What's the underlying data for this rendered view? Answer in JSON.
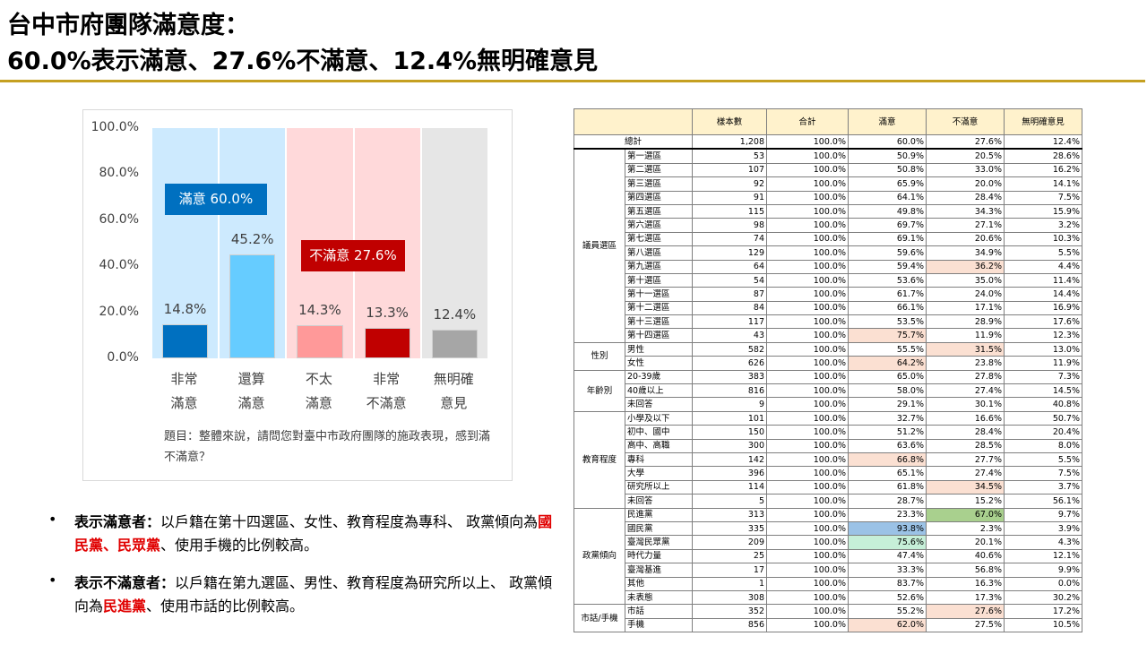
{
  "header": {
    "title_line1": "台中市府團隊滿意度：",
    "title_line2": "60.0%表示滿意、27.6%不滿意、12.4%無明確意見"
  },
  "chart_data": {
    "type": "bar",
    "categories": [
      "非常\n滿意",
      "還算\n滿意",
      "不太\n滿意",
      "非常\n不滿意",
      "無明確\n意見"
    ],
    "values": [
      14.8,
      45.2,
      14.3,
      13.3,
      12.4
    ],
    "value_labels": [
      "14.8%",
      "45.2%",
      "14.3%",
      "13.3%",
      "12.4%"
    ],
    "colors": [
      "#0070c0",
      "#66ccff",
      "#ff9999",
      "#c00000",
      "#a6a6a6"
    ],
    "band_colors": [
      "#cdeafe",
      "#cdeafe",
      "#ffd9da",
      "#ffd9da",
      "#e6e6e6"
    ],
    "ylim": [
      0,
      100
    ],
    "yticks": [
      {
        "value": 0,
        "label": "0.0%"
      },
      {
        "value": 20,
        "label": "20.0%"
      },
      {
        "value": 40,
        "label": "40.0%"
      },
      {
        "value": 60,
        "label": "60.0%"
      },
      {
        "value": 80,
        "label": "80.0%"
      },
      {
        "value": 100,
        "label": "100.0%"
      }
    ],
    "annotations": [
      "滿意 60.0%",
      "不滿意 27.6%"
    ],
    "note": "題目：整體來說，請問您對臺中市政府團隊的施政表現，感到滿不滿意？"
  },
  "bullets": [
    {
      "segments": [
        "表示滿意者：",
        "以戶籍在第十四選區、女性、教育程度為專科、 政黨傾向為",
        "國民黨、民眾黨",
        "、使用手機的比例較高。"
      ]
    },
    {
      "segments": [
        "表示不滿意者：",
        "以戶籍在第九選區、男性、教育程度為研究所以上、 政黨傾向為",
        "民進黨",
        "、使用市話的比例較高。"
      ]
    }
  ],
  "table": {
    "columns": [
      "樣本數",
      "合計",
      "滿意",
      "不滿意",
      "無明確意見"
    ],
    "total": {
      "label": "總計",
      "cells": [
        "1,208",
        "100.0%",
        "60.0%",
        "27.6%",
        "12.4%"
      ]
    },
    "groups": [
      {
        "name": "議員選區",
        "rows": [
          {
            "cells": [
              "第一選區",
              "53",
              "100.0%",
              "50.9%",
              "20.5%",
              "28.6%"
            ]
          },
          {
            "cells": [
              "第二選區",
              "107",
              "100.0%",
              "50.8%",
              "33.0%",
              "16.2%"
            ]
          },
          {
            "cells": [
              "第三選區",
              "92",
              "100.0%",
              "65.9%",
              "20.0%",
              "14.1%"
            ]
          },
          {
            "cells": [
              "第四選區",
              "91",
              "100.0%",
              "64.1%",
              "28.4%",
              "7.5%"
            ]
          },
          {
            "cells": [
              "第五選區",
              "115",
              "100.0%",
              "49.8%",
              "34.3%",
              "15.9%"
            ]
          },
          {
            "cells": [
              "第六選區",
              "98",
              "100.0%",
              "69.7%",
              "27.1%",
              "3.2%"
            ]
          },
          {
            "cells": [
              "第七選區",
              "74",
              "100.0%",
              "69.1%",
              "20.6%",
              "10.3%"
            ]
          },
          {
            "cells": [
              "第八選區",
              "129",
              "100.0%",
              "59.6%",
              "34.9%",
              "5.5%"
            ]
          },
          {
            "cells": [
              "第九選區",
              "64",
              "100.0%",
              "59.4%",
              "36.2%",
              "4.4%"
            ],
            "highlight": {
              "col": 4,
              "color": "#fbe0d2"
            }
          },
          {
            "cells": [
              "第十選區",
              "54",
              "100.0%",
              "53.6%",
              "35.0%",
              "11.4%"
            ]
          },
          {
            "cells": [
              "第十一選區",
              "87",
              "100.0%",
              "61.7%",
              "24.0%",
              "14.4%"
            ]
          },
          {
            "cells": [
              "第十二選區",
              "84",
              "100.0%",
              "66.1%",
              "17.1%",
              "16.9%"
            ]
          },
          {
            "cells": [
              "第十三選區",
              "117",
              "100.0%",
              "53.5%",
              "28.9%",
              "17.6%"
            ]
          },
          {
            "cells": [
              "第十四選區",
              "43",
              "100.0%",
              "75.7%",
              "11.9%",
              "12.3%"
            ],
            "highlight": {
              "col": 3,
              "color": "#fbe0d2"
            }
          }
        ]
      },
      {
        "name": "性別",
        "rows": [
          {
            "cells": [
              "男性",
              "582",
              "100.0%",
              "55.5%",
              "31.5%",
              "13.0%"
            ],
            "highlight": {
              "col": 4,
              "color": "#fbe0d2"
            }
          },
          {
            "cells": [
              "女性",
              "626",
              "100.0%",
              "64.2%",
              "23.8%",
              "11.9%"
            ],
            "highlight": {
              "col": 3,
              "color": "#fbe0d2"
            }
          }
        ]
      },
      {
        "name": "年齡別",
        "rows": [
          {
            "cells": [
              "20-39歲",
              "383",
              "100.0%",
              "65.0%",
              "27.8%",
              "7.3%"
            ]
          },
          {
            "cells": [
              "40歲以上",
              "816",
              "100.0%",
              "58.0%",
              "27.4%",
              "14.5%"
            ]
          },
          {
            "cells": [
              "未回答",
              "9",
              "100.0%",
              "29.1%",
              "30.1%",
              "40.8%"
            ]
          }
        ]
      },
      {
        "name": "教育程度",
        "rows": [
          {
            "cells": [
              "小學及以下",
              "101",
              "100.0%",
              "32.7%",
              "16.6%",
              "50.7%"
            ]
          },
          {
            "cells": [
              "初中、國中",
              "150",
              "100.0%",
              "51.2%",
              "28.4%",
              "20.4%"
            ]
          },
          {
            "cells": [
              "高中、高職",
              "300",
              "100.0%",
              "63.6%",
              "28.5%",
              "8.0%"
            ]
          },
          {
            "cells": [
              "專科",
              "142",
              "100.0%",
              "66.8%",
              "27.7%",
              "5.5%"
            ],
            "highlight": {
              "col": 3,
              "color": "#fbe0d2"
            }
          },
          {
            "cells": [
              "大學",
              "396",
              "100.0%",
              "65.1%",
              "27.4%",
              "7.5%"
            ]
          },
          {
            "cells": [
              "研究所以上",
              "114",
              "100.0%",
              "61.8%",
              "34.5%",
              "3.7%"
            ],
            "highlight": {
              "col": 4,
              "color": "#fbe0d2"
            }
          },
          {
            "cells": [
              "未回答",
              "5",
              "100.0%",
              "28.7%",
              "15.2%",
              "56.1%"
            ]
          }
        ]
      },
      {
        "name": "政黨傾向",
        "rows": [
          {
            "cells": [
              "民進黨",
              "313",
              "100.0%",
              "23.3%",
              "67.0%",
              "9.7%"
            ],
            "highlight": {
              "col": 4,
              "color": "#a9d08e"
            }
          },
          {
            "cells": [
              "國民黨",
              "335",
              "100.0%",
              "93.8%",
              "2.3%",
              "3.9%"
            ],
            "highlight": {
              "col": 3,
              "color": "#9bc2e6"
            }
          },
          {
            "cells": [
              "臺灣民眾黨",
              "209",
              "100.0%",
              "75.6%",
              "20.1%",
              "4.3%"
            ],
            "highlight": {
              "col": 3,
              "color": "#c6efd8"
            }
          },
          {
            "cells": [
              "時代力量",
              "25",
              "100.0%",
              "47.4%",
              "40.6%",
              "12.1%"
            ]
          },
          {
            "cells": [
              "臺灣基進",
              "17",
              "100.0%",
              "33.3%",
              "56.8%",
              "9.9%"
            ]
          },
          {
            "cells": [
              "其他",
              "1",
              "100.0%",
              "83.7%",
              "16.3%",
              "0.0%"
            ]
          },
          {
            "cells": [
              "未表態",
              "308",
              "100.0%",
              "52.6%",
              "17.3%",
              "30.2%"
            ]
          }
        ]
      },
      {
        "name": "市話/手機",
        "rows": [
          {
            "cells": [
              "市話",
              "352",
              "100.0%",
              "55.2%",
              "27.6%",
              "17.2%"
            ],
            "highlight": {
              "col": 4,
              "color": "#fbe0d2"
            }
          },
          {
            "cells": [
              "手機",
              "856",
              "100.0%",
              "62.0%",
              "27.5%",
              "10.5%"
            ],
            "highlight": {
              "col": 3,
              "color": "#fbe0d2"
            }
          }
        ]
      }
    ]
  }
}
